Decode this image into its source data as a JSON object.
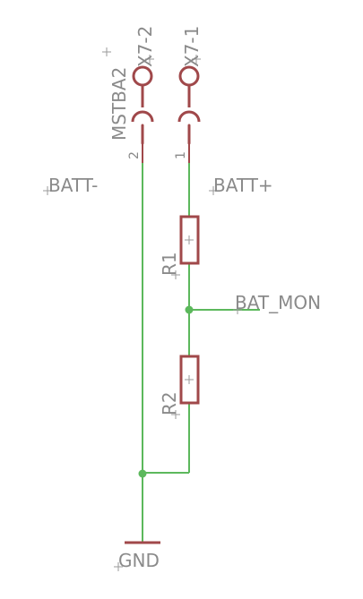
{
  "labels": {
    "x7_2": "X7-2",
    "x7_1": "X7-1",
    "mstba2": "MSTBA2",
    "pin2": "2",
    "pin1": "1",
    "batt_minus": "BATT-",
    "batt_plus": "BATT+",
    "r1": "R1",
    "r2": "R2",
    "bat_mon": "BAT_MON",
    "gnd": "GND"
  },
  "colors": {
    "wire": "#5cb85c",
    "component": "#a0484a",
    "text": "#8a8a8a"
  }
}
